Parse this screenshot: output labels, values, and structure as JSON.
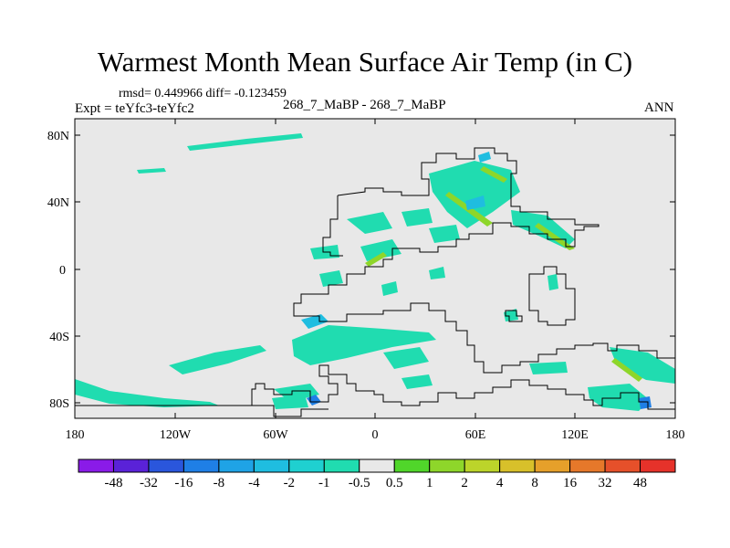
{
  "title": "Warmest Month Mean Surface Air Temp (in C)",
  "stats": "rmsd= 0.449966  diff= -0.123459",
  "expt": "Expt = teYfc3-teYfc2",
  "center_label": "268_7_MaBP - 268_7_MaBP",
  "season": "ANN",
  "lat_labels": [
    "80N",
    "40N",
    "0",
    "40S",
    "80S"
  ],
  "lon_labels": [
    "180",
    "120W",
    "60W",
    "0",
    "60E",
    "120E",
    "180"
  ],
  "colorbar": {
    "labels": [
      "-48",
      "-32",
      "-16",
      "-8",
      "-4",
      "-2",
      "-1",
      "-0.5",
      "0.5",
      "1",
      "2",
      "4",
      "8",
      "16",
      "32",
      "48"
    ],
    "colors": [
      "#8a1be8",
      "#5a22d8",
      "#2a56dc",
      "#1f7fe6",
      "#1fa3e6",
      "#1fbde0",
      "#1fd0d0",
      "#20dcb0",
      "#e8e8e8",
      "#50d62a",
      "#8ed62a",
      "#bcd42a",
      "#d8c02a",
      "#e6a02a",
      "#e6782a",
      "#e6502a",
      "#e6322a"
    ]
  },
  "colors": {
    "ocean": "#e8e8e8",
    "neg_small": "#20dcb0",
    "neg_mid": "#1fbde0",
    "pos_small": "#8ed62a",
    "neg_dark": "#1f7fe6"
  }
}
